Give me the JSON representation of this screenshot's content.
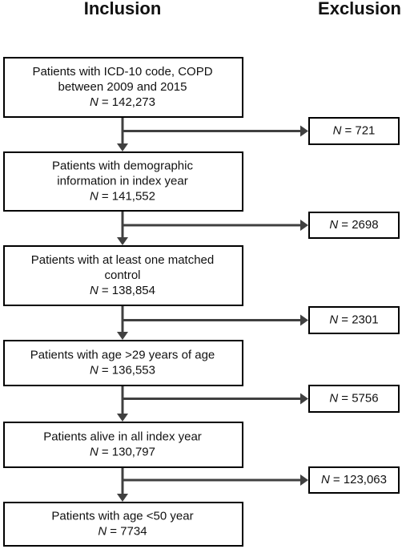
{
  "headers": {
    "inclusion": "Inclusion",
    "exclusion": "Exclusion"
  },
  "inclusion_boxes": [
    {
      "lines": [
        "Patients with ICD-10 code, COPD",
        "between 2009 and 2015"
      ],
      "count_symbol": "N",
      "count_text": "= 142,273"
    },
    {
      "lines": [
        "Patients with demographic",
        "information in index year"
      ],
      "count_symbol": "N",
      "count_text": "= 141,552"
    },
    {
      "lines": [
        "Patients with at least one matched",
        "control"
      ],
      "count_symbol": "N",
      "count_text": "= 138,854"
    },
    {
      "lines": [
        "Patients with age >29 years of age"
      ],
      "count_symbol": "N",
      "count_text": "= 136,553"
    },
    {
      "lines": [
        "Patients alive in all index year"
      ],
      "count_symbol": "N",
      "count_text": "= 130,797"
    },
    {
      "lines": [
        "Patients with age <50 year"
      ],
      "count_symbol": "N",
      "count_text": "= 7734"
    }
  ],
  "exclusion_boxes": [
    {
      "count_symbol": "N",
      "count_text": "= 721"
    },
    {
      "count_symbol": "N",
      "count_text": "= 2698"
    },
    {
      "count_symbol": "N",
      "count_text": "= 2301"
    },
    {
      "count_symbol": "N",
      "count_text": "= 5756"
    },
    {
      "count_symbol": "N",
      "count_text": "= 123,063"
    }
  ]
}
